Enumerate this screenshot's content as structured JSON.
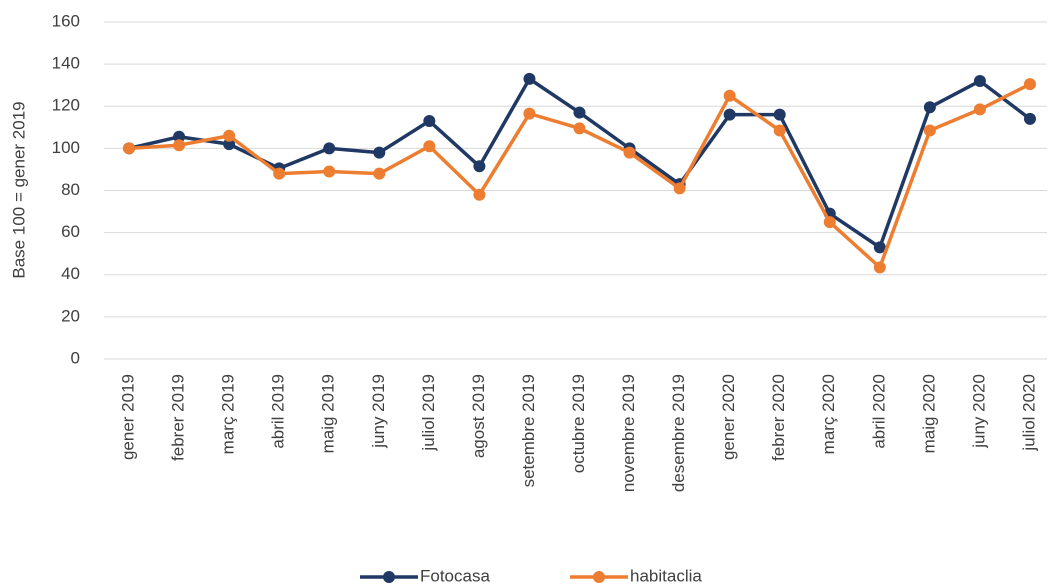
{
  "chart_data": {
    "type": "line",
    "y_label": "Base 100 = gener 2019",
    "categories": [
      "gener 2019",
      "febrer 2019",
      "març 2019",
      "abril 2019",
      "maig 2019",
      "juny 2019",
      "juliol 2019",
      "agost 2019",
      "setembre 2019",
      "octubre 2019",
      "novembre 2019",
      "desembre 2019",
      "gener 2020",
      "febrer 2020",
      "març 2020",
      "abril 2020",
      "maig 2020",
      "juny 2020",
      "juliol 2020"
    ],
    "series": [
      {
        "name": "Fotocasa",
        "color": "#203864",
        "values": [
          100,
          105.5,
          102,
          90.5,
          100,
          98,
          113,
          91.5,
          133,
          117,
          100,
          83,
          116,
          116,
          69,
          53,
          119.5,
          132,
          114
        ]
      },
      {
        "name": "habitaclia",
        "color": "#ed7d31",
        "values": [
          100,
          101.5,
          106,
          88,
          89,
          88,
          101,
          78,
          116.5,
          109.5,
          98,
          81,
          125,
          108.5,
          65,
          43.5,
          108.5,
          118.5,
          130.5
        ]
      }
    ],
    "ylim": [
      0,
      160
    ],
    "yticks": [
      0,
      20,
      40,
      60,
      80,
      100,
      120,
      140,
      160
    ],
    "grid": true,
    "legend": "bottom"
  }
}
